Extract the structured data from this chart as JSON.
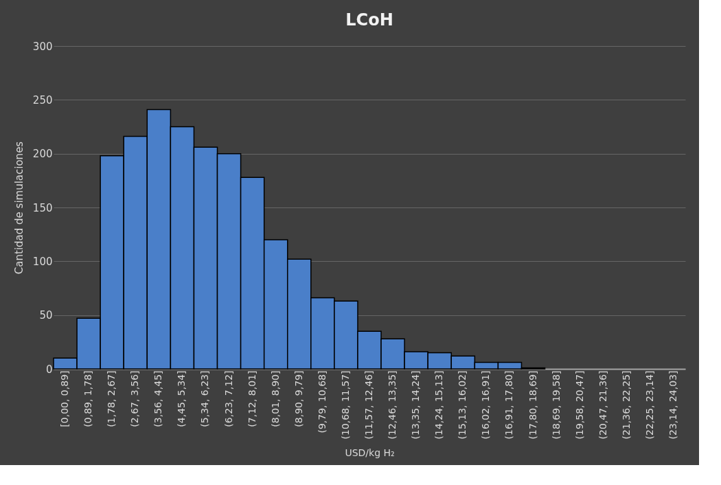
{
  "chart_data": {
    "type": "bar",
    "title": "LCoH",
    "xlabel": "USD/kg H₂",
    "ylabel": "Cantidad de simulaciones",
    "categories": [
      "[0,00, 0,89]",
      "(0,89, 1,78]",
      "(1,78, 2,67]",
      "(2,67, 3,56]",
      "(3,56, 4,45]",
      "(4,45, 5,34]",
      "(5,34, 6,23]",
      "(6,23, 7,12]",
      "(7,12, 8,01]",
      "(8,01, 8,90]",
      "(8,90, 9,79]",
      "(9,79, 10,68]",
      "(10,68, 11,57]",
      "(11,57, 12,46]",
      "(12,46, 13,35]",
      "(13,35, 14,24]",
      "(14,24, 15,13]",
      "(15,13, 16,02]",
      "(16,02, 16,91]",
      "(16,91, 17,80]",
      "(17,80, 18,69]",
      "(18,69, 19,58]",
      "(19,58, 20,47]",
      "(20,47, 21,36]",
      "(21,36, 22,25]",
      "(22,25, 23,14]",
      "(23,14, 24,03]"
    ],
    "values": [
      10,
      47,
      198,
      216,
      241,
      225,
      206,
      200,
      178,
      120,
      102,
      66,
      63,
      35,
      28,
      16,
      15,
      12,
      6,
      6,
      1,
      0,
      0,
      0,
      0,
      0,
      0
    ],
    "color": "#4a7fc9",
    "ylim": [
      0,
      300
    ],
    "yticks": [
      0,
      50,
      100,
      150,
      200,
      250,
      300
    ],
    "grid": "y"
  }
}
